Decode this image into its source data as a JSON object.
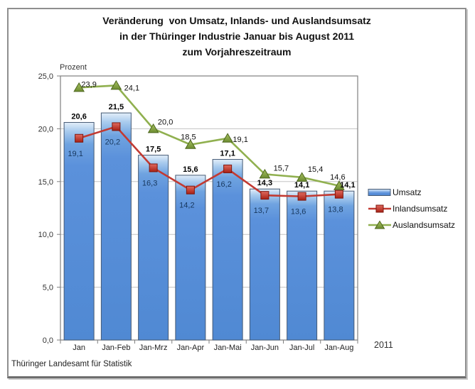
{
  "page": {
    "title_lines": [
      "Veränderung  von Umsatz, Inlands- und Auslandsumsatz",
      "in der Thüringer Industrie Januar bis August 2011",
      "zum Vorjahreszeitraum"
    ],
    "footer": "Thüringer Landesamt für Statistik"
  },
  "chart_data": {
    "type": "bar",
    "subtype": "bar-and-line-combo",
    "title": "Veränderung von Umsatz, Inlands- und Auslandsumsatz in der Thüringer Industrie Januar bis August 2011 zum Vorjahreszeitraum",
    "categories": [
      "Jan",
      "Jan-Feb",
      "Jan-Mrz",
      "Jan-Apr",
      "Jan-Mai",
      "Jan-Jun",
      "Jan-Jul",
      "Jan-Aug"
    ],
    "series": [
      {
        "name": "Umsatz",
        "type": "bar",
        "marker": "bar-swatch",
        "color": "#5B91DB",
        "values": [
          20.6,
          21.5,
          17.5,
          15.6,
          17.1,
          14.3,
          14.1,
          14.1
        ]
      },
      {
        "name": "Inlandsumsatz",
        "type": "line",
        "marker": "square",
        "color": "#C23A32",
        "values": [
          19.1,
          20.2,
          16.3,
          14.2,
          16.2,
          13.7,
          13.6,
          13.8
        ]
      },
      {
        "name": "Auslandsumsatz",
        "type": "line",
        "marker": "triangle",
        "color": "#90B04F",
        "values": [
          23.9,
          24.1,
          20.0,
          18.5,
          19.1,
          15.7,
          15.4,
          14.6
        ]
      }
    ],
    "ylabel": "Prozent",
    "xlabel": "",
    "x_axis_note": "2011",
    "ylim": [
      0,
      25
    ],
    "ytick_step": 5,
    "ytick_labels": [
      "0,0",
      "5,0",
      "10,0",
      "15,0",
      "20,0",
      "25,0"
    ],
    "decimal_separator": ",",
    "grid": true,
    "legend_position": "right",
    "colors": {
      "bar_fill": "#5B91DB",
      "bar_border": "#455A75",
      "red_line": "#C23A32",
      "red_marker_border": "#7E170E",
      "green_line": "#90B04F",
      "green_marker_border": "#4C661D",
      "value_label_navy": "#17375E",
      "gridline": "#C3C3C3",
      "plot_border": "#7F7F7F"
    }
  }
}
